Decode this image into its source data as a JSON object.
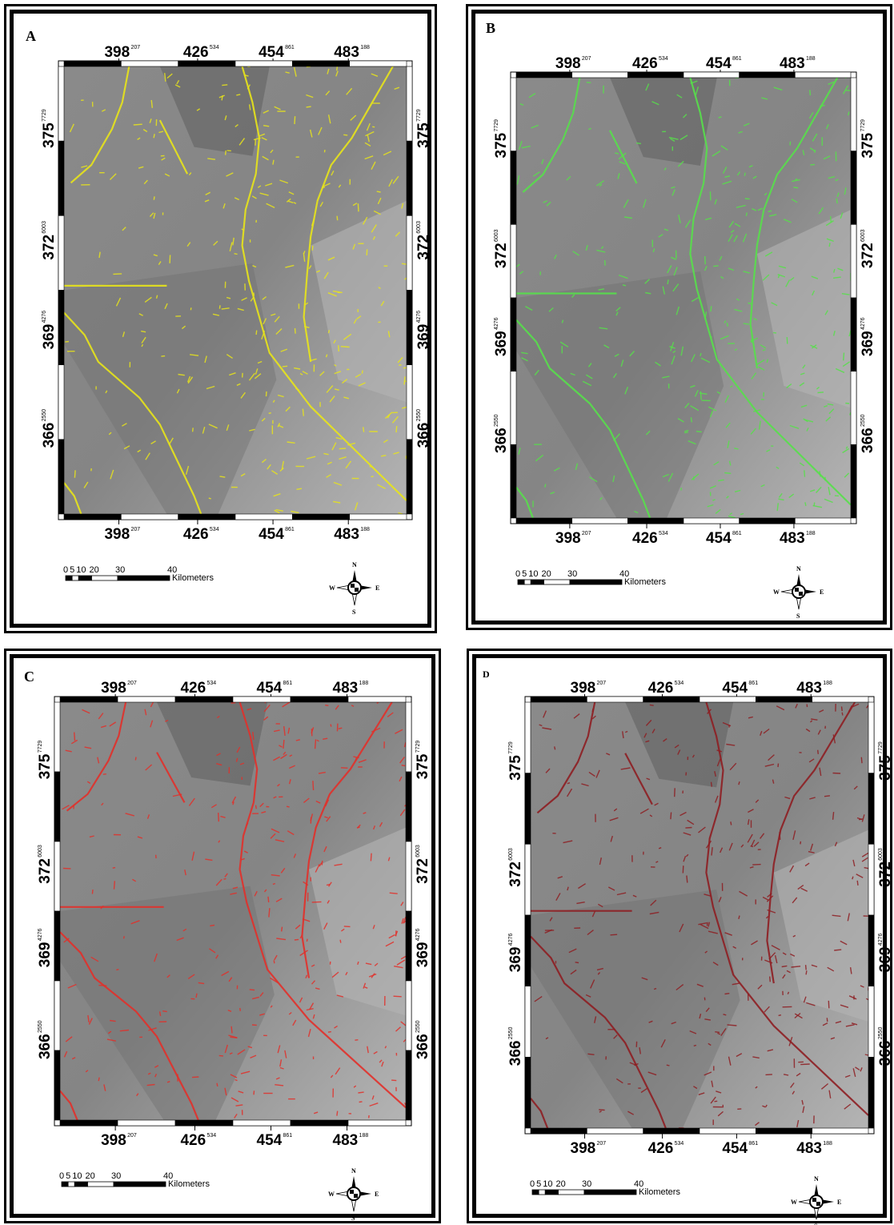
{
  "panels": [
    {
      "id": "A",
      "label": "A",
      "overlay_color": "#e8e41a",
      "overlay_name": "yellow"
    },
    {
      "id": "B",
      "label": "B",
      "overlay_color": "#57e04a",
      "overlay_name": "green"
    },
    {
      "id": "C",
      "label": "C",
      "overlay_color": "#e2302a",
      "overlay_name": "red"
    },
    {
      "id": "D",
      "label": "D",
      "overlay_color": "#8e1e22",
      "overlay_name": "dark-red"
    }
  ],
  "x_ticks": [
    {
      "main": "398",
      "sup": "207"
    },
    {
      "main": "426",
      "sup": "534"
    },
    {
      "main": "454",
      "sup": "861"
    },
    {
      "main": "483",
      "sup": "188"
    }
  ],
  "y_ticks": [
    {
      "main": "375",
      "sup": "7729"
    },
    {
      "main": "372",
      "sup": "6003"
    },
    {
      "main": "369",
      "sup": "4276"
    },
    {
      "main": "366",
      "sup": "2550"
    }
  ],
  "scale_bar": {
    "labels": [
      "0",
      "5",
      "10",
      "20",
      "30",
      "40"
    ],
    "unit": "Kilometers"
  },
  "compass": {
    "n": "N",
    "s": "S",
    "e": "E",
    "w": "W"
  },
  "colors": {
    "frame": "#000000",
    "map_base": "#8a8a8a",
    "map_dark": "#5e5e5e",
    "map_light": "#b4b4b4"
  }
}
